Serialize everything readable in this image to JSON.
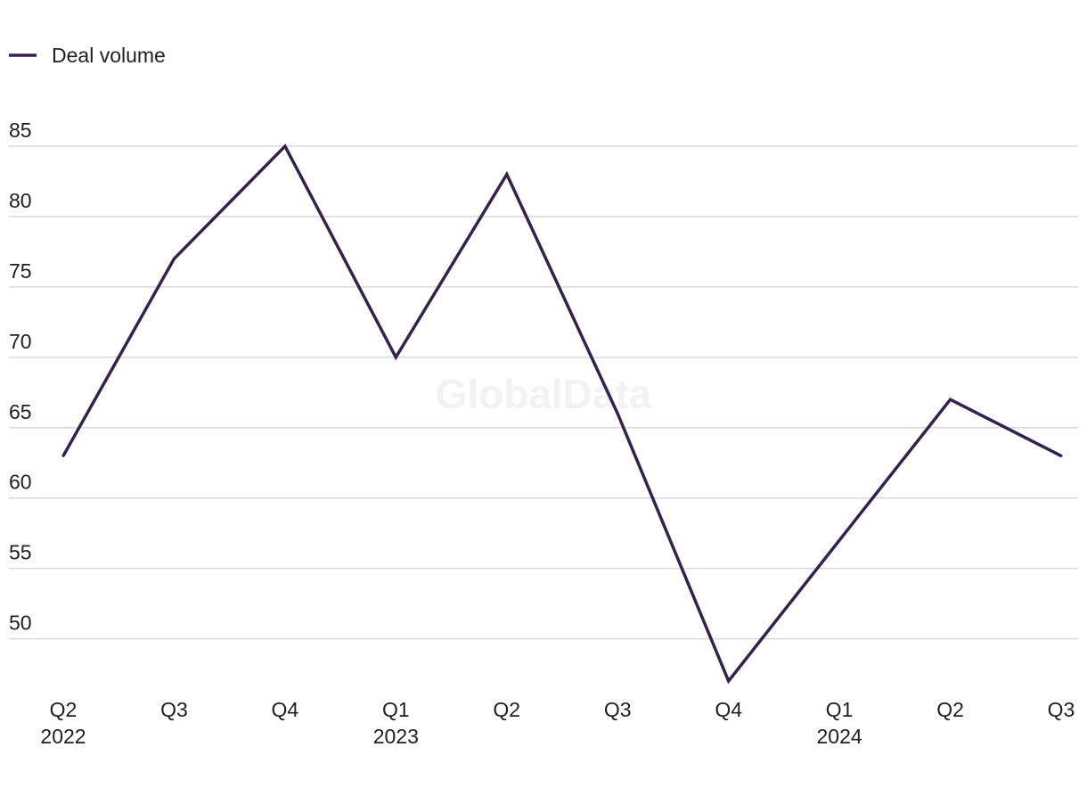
{
  "watermark": "GlobalData",
  "colors": {
    "series": "#35214f",
    "grid": "#d9d9d9",
    "text": "#1f1f1f"
  },
  "chart_data": {
    "type": "line",
    "categories": [
      "Q2 2022",
      "Q3 2022",
      "Q4 2022",
      "Q1 2023",
      "Q2 2023",
      "Q3 2023",
      "Q4 2023",
      "Q1 2024",
      "Q2 2024",
      "Q3 2024"
    ],
    "x_tick_labels": [
      {
        "quarter": "Q2",
        "year": "2022"
      },
      {
        "quarter": "Q3",
        "year": ""
      },
      {
        "quarter": "Q4",
        "year": ""
      },
      {
        "quarter": "Q1",
        "year": "2023"
      },
      {
        "quarter": "Q2",
        "year": ""
      },
      {
        "quarter": "Q3",
        "year": ""
      },
      {
        "quarter": "Q4",
        "year": ""
      },
      {
        "quarter": "Q1",
        "year": "2024"
      },
      {
        "quarter": "Q2",
        "year": ""
      },
      {
        "quarter": "Q3",
        "year": ""
      }
    ],
    "series": [
      {
        "name": "Deal volume",
        "values": [
          63,
          77,
          85,
          70,
          83,
          66,
          47,
          57,
          67,
          63
        ]
      }
    ],
    "y_ticks": [
      50,
      55,
      60,
      65,
      70,
      75,
      80,
      85
    ],
    "ylim": [
      47,
      85
    ],
    "grid": true,
    "legend_position": "top-left",
    "title": "",
    "xlabel": "",
    "ylabel": ""
  }
}
